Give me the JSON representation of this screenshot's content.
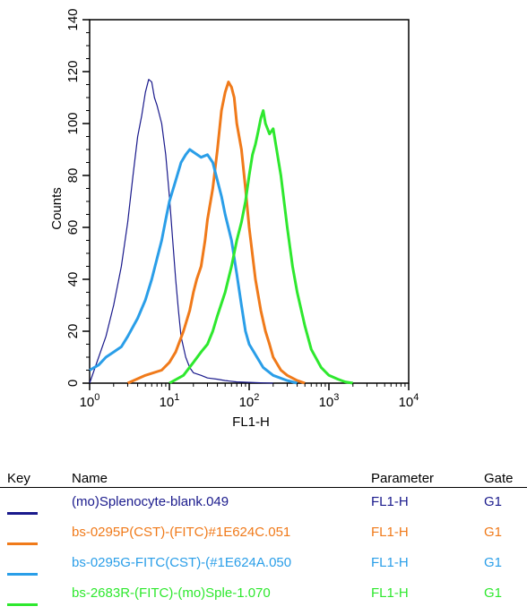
{
  "chart_data": {
    "type": "line",
    "xlabel": "FL1-H",
    "ylabel": "Counts",
    "xscale": "log",
    "xlim": [
      1,
      10000
    ],
    "ylim": [
      0,
      140
    ],
    "x_ticks": [
      1,
      10,
      100,
      1000,
      10000
    ],
    "x_tick_labels": [
      {
        "base": "10",
        "exp": "0"
      },
      {
        "base": "10",
        "exp": "1"
      },
      {
        "base": "10",
        "exp": "2"
      },
      {
        "base": "10",
        "exp": "3"
      },
      {
        "base": "10",
        "exp": "4"
      }
    ],
    "y_ticks": [
      0,
      20,
      40,
      60,
      80,
      100,
      120,
      140
    ],
    "grid": false,
    "series": [
      {
        "name": "(mo)Splenocyte-blank.049",
        "color": "#1a1a8c",
        "width": 1.2,
        "x": [
          1,
          1.3,
          1.6,
          2,
          2.5,
          3,
          3.5,
          4,
          4.5,
          5,
          5.5,
          6,
          6.5,
          7,
          8,
          9,
          10,
          11,
          12,
          13,
          14,
          16,
          18,
          20,
          25,
          30,
          40,
          50,
          70,
          100,
          150,
          200
        ],
        "y": [
          0,
          10,
          18,
          30,
          45,
          62,
          80,
          95,
          103,
          112,
          117,
          116,
          110,
          107,
          100,
          88,
          72,
          55,
          40,
          28,
          18,
          10,
          6,
          4,
          3,
          2,
          1.5,
          1,
          0.5,
          0.3,
          0.1,
          0
        ]
      },
      {
        "name": "bs-0295P(CST)-(FITC)#1E624C.051",
        "color": "#f07a1a",
        "width": 3,
        "x": [
          3,
          5,
          8,
          10,
          12,
          15,
          18,
          20,
          22,
          25,
          28,
          30,
          35,
          40,
          45,
          50,
          55,
          60,
          65,
          70,
          80,
          90,
          100,
          120,
          140,
          160,
          180,
          200,
          250,
          300,
          400,
          500
        ],
        "y": [
          0,
          3,
          5,
          8,
          12,
          20,
          28,
          35,
          40,
          45,
          55,
          63,
          75,
          90,
          105,
          112,
          116,
          114,
          110,
          100,
          90,
          75,
          60,
          40,
          28,
          20,
          15,
          10,
          5,
          3,
          1,
          0
        ]
      },
      {
        "name": "bs-0295G-FITC(CST)-(#1E624A.050",
        "color": "#2a9ee8",
        "width": 3,
        "x": [
          1,
          1.3,
          1.6,
          2,
          2.5,
          3,
          4,
          5,
          6,
          7,
          8,
          9,
          10,
          12,
          14,
          16,
          18,
          20,
          25,
          30,
          35,
          40,
          45,
          50,
          60,
          70,
          80,
          90,
          100,
          150,
          200,
          300,
          400
        ],
        "y": [
          5,
          7,
          10,
          12,
          14,
          18,
          25,
          32,
          40,
          48,
          55,
          63,
          70,
          78,
          85,
          88,
          90,
          89,
          87,
          88,
          85,
          78,
          72,
          65,
          55,
          42,
          30,
          20,
          15,
          6,
          3,
          1,
          0
        ]
      },
      {
        "name": "bs-2683R-(FITC)-(mo)Sple-1.070",
        "color": "#2ee82e",
        "width": 3,
        "x": [
          10,
          15,
          20,
          25,
          30,
          35,
          40,
          50,
          60,
          70,
          80,
          90,
          100,
          110,
          120,
          130,
          140,
          150,
          160,
          170,
          180,
          200,
          250,
          300,
          350,
          400,
          500,
          600,
          800,
          1000,
          1300,
          1600,
          2000
        ],
        "y": [
          0,
          3,
          8,
          12,
          15,
          20,
          26,
          35,
          45,
          55,
          62,
          70,
          80,
          88,
          92,
          97,
          102,
          105,
          100,
          98,
          96,
          98,
          80,
          60,
          45,
          35,
          22,
          13,
          6,
          3,
          1.5,
          0.5,
          0
        ]
      }
    ]
  },
  "legend": {
    "headers": {
      "key": "Key",
      "name": "Name",
      "parameter": "Parameter",
      "gate": "Gate"
    },
    "rows": [
      {
        "color": "#1a1a8c",
        "name": "(mo)Splenocyte-blank.049",
        "parameter": "FL1-H",
        "gate": "G1"
      },
      {
        "color": "#f07a1a",
        "name": "bs-0295P(CST)-(FITC)#1E624C.051",
        "parameter": "FL1-H",
        "gate": "G1"
      },
      {
        "color": "#2a9ee8",
        "name": "bs-0295G-FITC(CST)-(#1E624A.050",
        "parameter": "FL1-H",
        "gate": "G1"
      },
      {
        "color": "#2ee82e",
        "name": "bs-2683R-(FITC)-(mo)Sple-1.070",
        "parameter": "FL1-H",
        "gate": "G1"
      }
    ]
  }
}
